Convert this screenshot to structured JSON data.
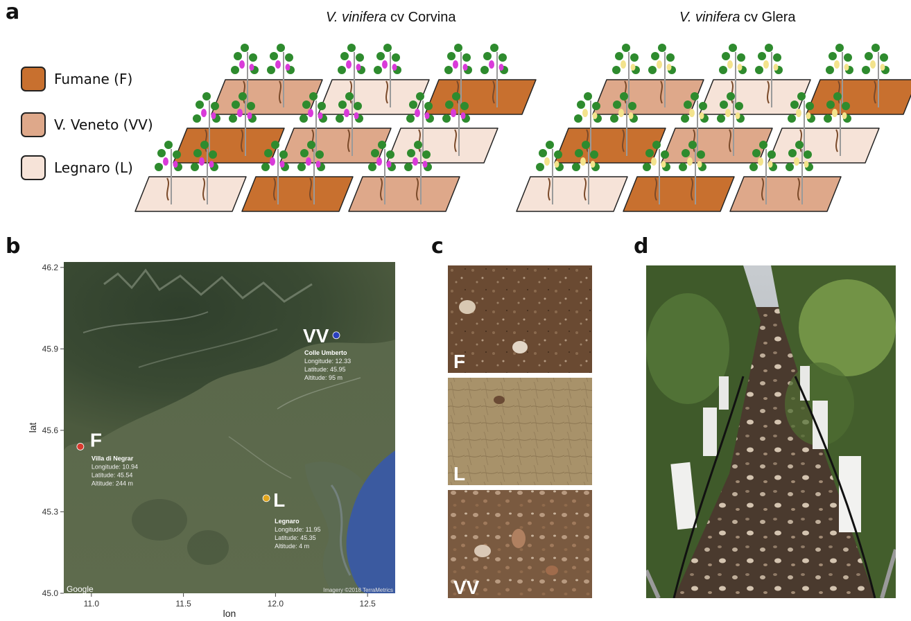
{
  "panels": {
    "a": {
      "letter": "a",
      "cultivar_left": {
        "prefix": "V. vinifera",
        "suffix": " cv Corvina"
      },
      "cultivar_right": {
        "prefix": "V. vinifera",
        "suffix": " cv Glera"
      },
      "legend": [
        {
          "label": "Fumane (F)",
          "color": "#c8702f"
        },
        {
          "label": "V. Veneto (VV)",
          "color": "#dea88a"
        },
        {
          "label": "Legnaro (L)",
          "color": "#f6e3d8"
        }
      ],
      "grape_colors": {
        "corvina": "#d93ad9",
        "glera": "#f3e38c"
      },
      "leaf_color": "#2e8b2e",
      "plot_arrangement_left": [
        [
          "VV",
          "L",
          "F"
        ],
        [
          "F",
          "VV",
          "L"
        ],
        [
          "L",
          "F",
          "VV"
        ]
      ],
      "plot_arrangement_right": [
        [
          "VV",
          "L",
          "F"
        ],
        [
          "F",
          "VV",
          "L"
        ],
        [
          "L",
          "F",
          "VV"
        ]
      ]
    },
    "b": {
      "letter": "b",
      "map": {
        "xlabel": "lon",
        "ylabel": "lat",
        "x_ticks": [
          "11.0",
          "11.5",
          "12.0",
          "12.5"
        ],
        "y_ticks": [
          "46.2",
          "45.9",
          "45.6",
          "45.3",
          "45.0"
        ],
        "xlim": [
          10.85,
          12.65
        ],
        "ylim": [
          45.0,
          46.22
        ],
        "google_label": "Google",
        "imagery_credit": "Imagery ©2018 TerraMetrics",
        "sites": [
          {
            "code": "VV",
            "name": "Colle Umberto",
            "lon": 12.33,
            "lat": 45.95,
            "color": "#2a3fbf",
            "lines": [
              "Longitude: 12.33",
              "Latitude:    45.95",
              "Altitude:    95 m"
            ]
          },
          {
            "code": "F",
            "name": "Villa di Negrar",
            "lon": 10.94,
            "lat": 45.54,
            "color": "#d83a2e",
            "lines": [
              "Longitude: 10.94",
              "Latitude:    45.54",
              "Altitude:   244 m"
            ]
          },
          {
            "code": "L",
            "name": "Legnaro",
            "lon": 11.95,
            "lat": 45.35,
            "color": "#e0a51e",
            "lines": [
              "Longitude: 11.95",
              "Latitude:    45.35",
              "Altitude:     4 m"
            ]
          }
        ]
      }
    },
    "c": {
      "letter": "c",
      "soils": [
        {
          "code": "F",
          "color": "#6b4a30"
        },
        {
          "code": "L",
          "color": "#a8926a"
        },
        {
          "code": "VV",
          "color": "#7a5a40"
        }
      ]
    },
    "d": {
      "letter": "d"
    }
  }
}
